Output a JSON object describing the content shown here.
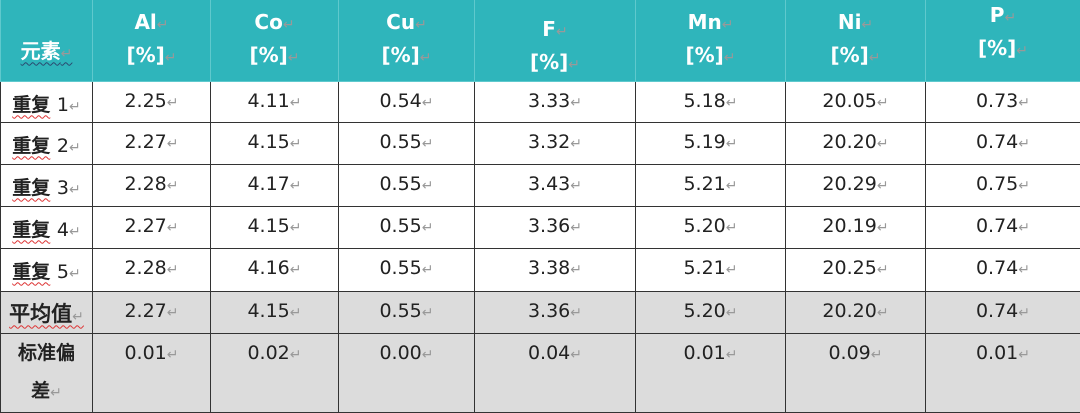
{
  "table": {
    "header_label": "元素",
    "columns": [
      {
        "element": "Al",
        "unit": "[%]"
      },
      {
        "element": "Co",
        "unit": "[%]"
      },
      {
        "element": "Cu",
        "unit": "[%]"
      },
      {
        "element": "F",
        "unit": "[%]"
      },
      {
        "element": "Mn",
        "unit": "[%]"
      },
      {
        "element": "Ni",
        "unit": "[%]"
      },
      {
        "element": "P",
        "unit": "[%]"
      }
    ],
    "rows": [
      {
        "label": "重复",
        "num": "1",
        "values": [
          "2.25",
          "4.11",
          "0.54",
          "3.33",
          "5.18",
          "20.05",
          "0.73"
        ]
      },
      {
        "label": "重复",
        "num": "2",
        "values": [
          "2.27",
          "4.15",
          "0.55",
          "3.32",
          "5.19",
          "20.20",
          "0.74"
        ]
      },
      {
        "label": "重复",
        "num": "3",
        "values": [
          "2.28",
          "4.17",
          "0.55",
          "3.43",
          "5.21",
          "20.29",
          "0.75"
        ]
      },
      {
        "label": "重复",
        "num": "4",
        "values": [
          "2.27",
          "4.15",
          "0.55",
          "3.36",
          "5.20",
          "20.19",
          "0.74"
        ]
      },
      {
        "label": "重复",
        "num": "5",
        "values": [
          "2.28",
          "4.16",
          "0.55",
          "3.38",
          "5.21",
          "20.25",
          "0.74"
        ]
      }
    ],
    "mean": {
      "label": "平均值",
      "values": [
        "2.27",
        "4.15",
        "0.55",
        "3.36",
        "5.20",
        "20.20",
        "0.74"
      ]
    },
    "std": {
      "label_line1": "标准偏",
      "label_line2": "差",
      "values": [
        "0.01",
        "0.02",
        "0.00",
        "0.04",
        "0.01",
        "0.09",
        "0.01"
      ]
    }
  },
  "colors": {
    "header_bg": "#2fb5bb",
    "summary_bg": "#dcdcdc"
  }
}
